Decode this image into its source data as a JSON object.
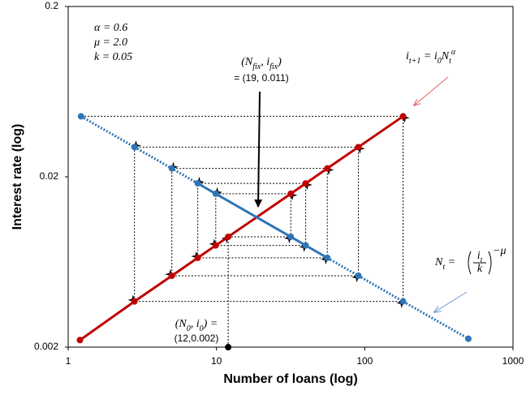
{
  "chart_data": {
    "type": "cobweb",
    "x_label": "Number of loans (log)",
    "y_label": "Interest rate (log)",
    "log_x": true,
    "log_y": true,
    "grid": false,
    "xlim": [
      1,
      1000
    ],
    "xticks": [
      1,
      10,
      100,
      1000
    ],
    "ylim": [
      0.002,
      0.2
    ],
    "yticks": [
      0.002,
      0.02,
      0.2
    ],
    "series": [
      {
        "color": "#c00000",
        "x": [
          1.2,
          2.8,
          5,
          7.48,
          9.89,
          12,
          31.7,
          39.96,
          55.9,
          90.6,
          181.4
        ],
        "values": [
          0.0022,
          0.00371,
          0.00525,
          0.00669,
          0.00791,
          0.00889,
          0.0159,
          0.0183,
          0.0224,
          0.0299,
          0.0453
        ]
      },
      {
        "color": "#2e75b6",
        "x": [
          1.22,
          2.8,
          5,
          7.48,
          9.89,
          31.7,
          39.96,
          55.9,
          90.6,
          181.4,
          500
        ],
        "values": [
          0.0453,
          0.0299,
          0.0224,
          0.0183,
          0.0159,
          0.00889,
          0.00791,
          0.00669,
          0.00525,
          0.00371,
          0.00224
        ]
      }
    ],
    "cobweb": {
      "color": "#000000",
      "x": [
        12,
        12,
        31.7,
        31.7,
        9.89,
        9.89,
        39.96,
        39.96,
        7.48,
        7.48,
        55.9,
        55.9,
        5,
        5,
        90.6,
        90.6,
        2.8,
        2.8,
        181.4,
        181.4,
        1.22
      ],
      "y": [
        0.002,
        0.00889,
        0.00889,
        0.0159,
        0.0159,
        0.00791,
        0.00791,
        0.0183,
        0.0183,
        0.00669,
        0.00669,
        0.0224,
        0.0224,
        0.00525,
        0.00525,
        0.0299,
        0.0299,
        0.00371,
        0.00371,
        0.0453,
        0.0453
      ]
    },
    "annotations": {
      "params": [
        "α = 0.6",
        "μ = 2.0",
        "k = 0.05"
      ],
      "fixed_point": [
        "(N",
        "fix",
        ", i",
        "fix",
        ")"
      ],
      "fixed_point_value": "= (19, 0.011)",
      "red_formula": [
        "i",
        "t+1",
        " = i",
        "0",
        "N",
        "t",
        "α"
      ],
      "blue_formula": [
        "N",
        "t",
        " = ",
        "i",
        "t",
        "k",
        "−μ"
      ],
      "start": [
        "(N",
        "0",
        ", i",
        "0",
        ") ="
      ],
      "start_value": "(12,0.002)"
    }
  }
}
